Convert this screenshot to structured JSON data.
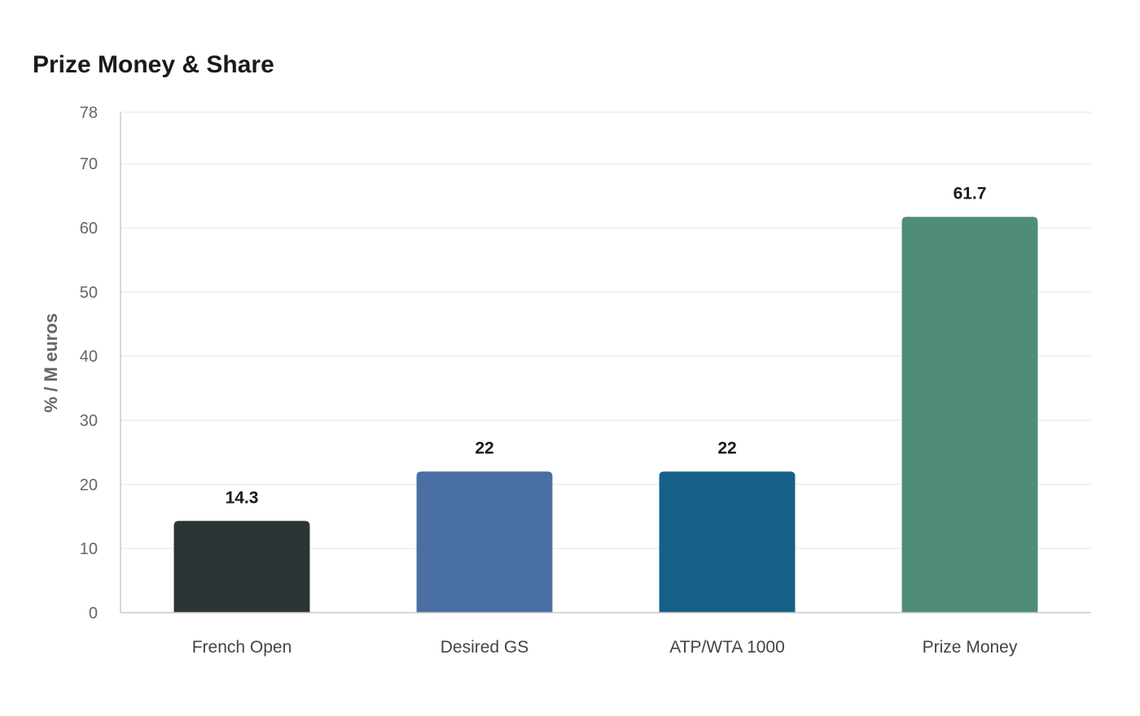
{
  "chart_data": {
    "type": "bar",
    "title": "Prize Money & Share",
    "xlabel": "",
    "ylabel": "% / M euros",
    "categories": [
      "French Open",
      "Desired GS",
      "ATP/WTA 1000",
      "Prize Money"
    ],
    "values": [
      14.3,
      22,
      22,
      61.7
    ],
    "value_labels": [
      "14.3",
      "22",
      "22",
      "61.7"
    ],
    "colors": [
      "#2d3436",
      "#4a6fa5",
      "#166088",
      "#4f8c7a"
    ],
    "ylim": [
      0,
      78
    ],
    "yticks": [
      0,
      10,
      20,
      30,
      40,
      50,
      60,
      70,
      78
    ],
    "grid": true,
    "legend": "none"
  }
}
